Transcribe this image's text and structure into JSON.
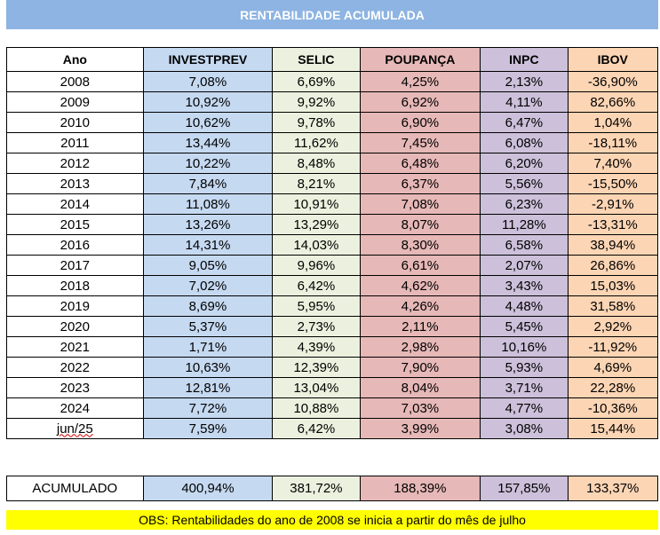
{
  "title": "RENTABILIDADE ACUMULADA",
  "headers": [
    "Ano",
    "INVESTPREV",
    "SELIC",
    "POUPANÇA",
    "INPC",
    "IBOV"
  ],
  "rows": [
    [
      "2008",
      "7,08%",
      "6,69%",
      "4,25%",
      "2,13%",
      "-36,90%"
    ],
    [
      "2009",
      "10,92%",
      "9,92%",
      "6,92%",
      "4,11%",
      "82,66%"
    ],
    [
      "2010",
      "10,62%",
      "9,78%",
      "6,90%",
      "6,47%",
      "1,04%"
    ],
    [
      "2011",
      "13,44%",
      "11,62%",
      "7,45%",
      "6,08%",
      "-18,11%"
    ],
    [
      "2012",
      "10,22%",
      "8,48%",
      "6,48%",
      "6,20%",
      "7,40%"
    ],
    [
      "2013",
      "7,84%",
      "8,21%",
      "6,37%",
      "5,56%",
      "-15,50%"
    ],
    [
      "2014",
      "11,08%",
      "10,91%",
      "7,08%",
      "6,23%",
      "-2,91%"
    ],
    [
      "2015",
      "13,26%",
      "13,29%",
      "8,07%",
      "11,28%",
      "-13,31%"
    ],
    [
      "2016",
      "14,31%",
      "14,03%",
      "8,30%",
      "6,58%",
      "38,94%"
    ],
    [
      "2017",
      "9,05%",
      "9,96%",
      "6,61%",
      "2,07%",
      "26,86%"
    ],
    [
      "2018",
      "7,02%",
      "6,42%",
      "4,62%",
      "3,43%",
      "15,03%"
    ],
    [
      "2019",
      "8,69%",
      "5,95%",
      "4,26%",
      "4,48%",
      "31,58%"
    ],
    [
      "2020",
      "5,37%",
      "2,73%",
      "2,11%",
      "5,45%",
      "2,92%"
    ],
    [
      "2021",
      "1,71%",
      "4,39%",
      "2,98%",
      "10,16%",
      "-11,92%"
    ],
    [
      "2022",
      "10,63%",
      "12,39%",
      "7,90%",
      "5,93%",
      "4,69%"
    ],
    [
      "2023",
      "12,81%",
      "13,04%",
      "8,04%",
      "3,71%",
      "22,28%"
    ],
    [
      "2024",
      "7,72%",
      "10,88%",
      "7,03%",
      "4,77%",
      "-10,36%"
    ],
    [
      "jun/25",
      "7,59%",
      "6,42%",
      "3,99%",
      "3,08%",
      "15,44%"
    ]
  ],
  "acumulado": [
    "ACUMULADO",
    "400,94%",
    "381,72%",
    "188,39%",
    "157,85%",
    "133,37%"
  ],
  "obs": "OBS: Rentabilidades do ano de 2008 se inicia a partir do mês de julho",
  "colors": {
    "title_bg": "#8db4e2",
    "investprev": "#c5d9f1",
    "selic": "#ebf1de",
    "poupanca": "#e6b8b7",
    "inpc": "#ccc0da",
    "ibov": "#fcd5b4",
    "obs_bg": "#ffff00"
  }
}
